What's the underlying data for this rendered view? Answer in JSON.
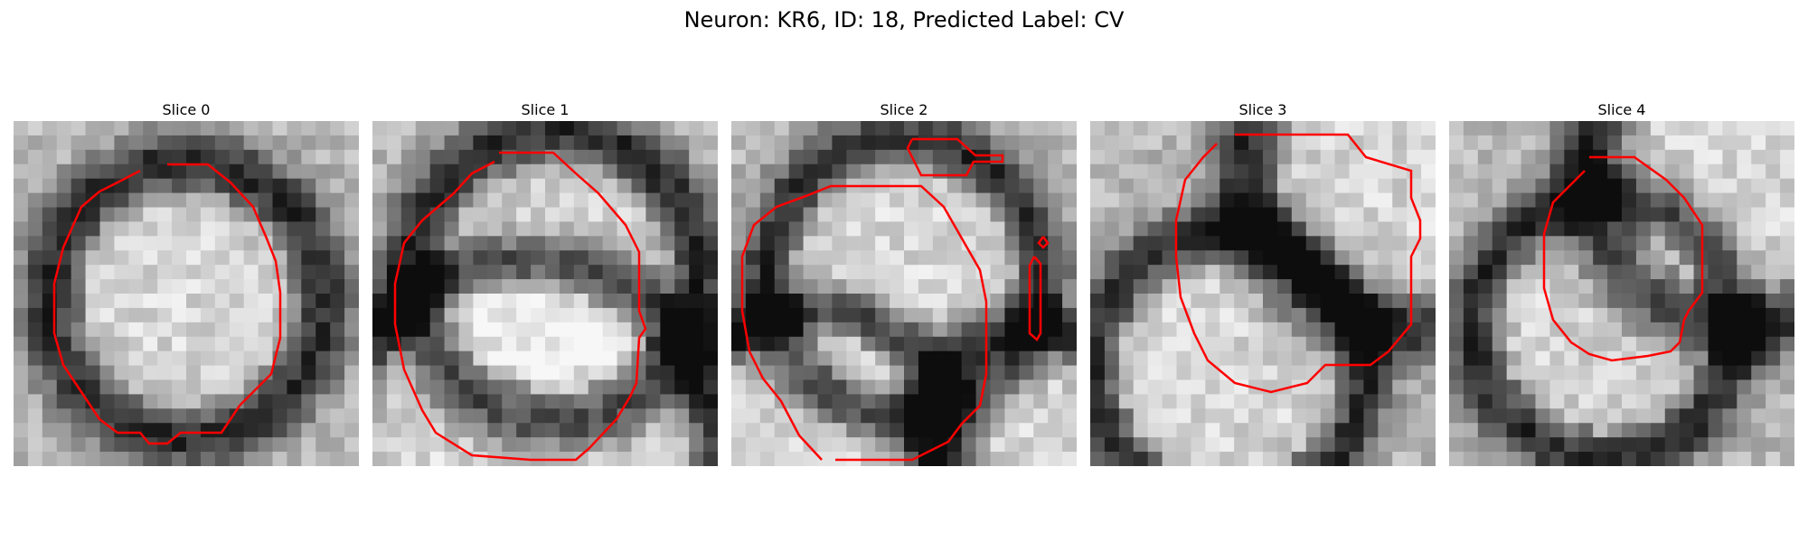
{
  "figure": {
    "title": "Neuron: KR6, ID: 18, Predicted Label: CV"
  },
  "panels": [
    {
      "title": "Slice 0"
    },
    {
      "title": "Slice 1"
    },
    {
      "title": "Slice 2"
    },
    {
      "title": "Slice 3"
    },
    {
      "title": "Slice 4"
    }
  ],
  "colors": {
    "contour": "#ff0000",
    "background": "#ffffff"
  }
}
